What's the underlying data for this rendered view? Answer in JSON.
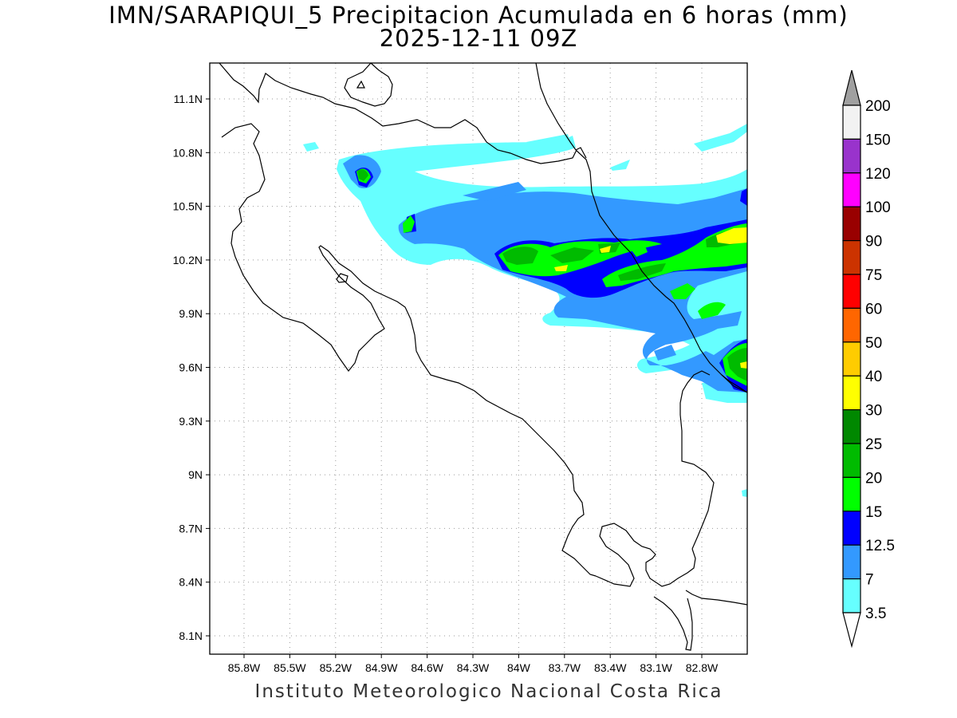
{
  "title": "IMN/SARAPIQUI_5 Precipitacion Acumulada en 6 horas (mm)",
  "subtitle": "2025-12-11 09Z",
  "footer": "Instituto Meteorologico Nacional Costa Rica",
  "map": {
    "lon_range": [
      -86.0,
      -82.5
    ],
    "lat_range": [
      8.0,
      11.3
    ],
    "lon_ticks": [
      "85.8W",
      "85.5W",
      "85.2W",
      "84.9W",
      "84.6W",
      "84.3W",
      "84W",
      "83.7W",
      "83.4W",
      "83.1W",
      "82.8W"
    ],
    "lat_ticks": [
      "11.1N",
      "10.8N",
      "10.5N",
      "10.2N",
      "9.9N",
      "9.6N",
      "9.3N",
      "9N",
      "8.7N",
      "8.4N",
      "8.1N"
    ],
    "grid": "dotted"
  },
  "colorbar": {
    "labels": [
      "200",
      "150",
      "120",
      "100",
      "90",
      "75",
      "60",
      "50",
      "40",
      "30",
      "25",
      "20",
      "15",
      "12.5",
      "7",
      "3.5"
    ],
    "colors": [
      "#f2f2f2",
      "#9933cc",
      "#ff00ff",
      "#990000",
      "#cc3300",
      "#ff0000",
      "#ff6600",
      "#ffcc00",
      "#ffff00",
      "#008800",
      "#00bb00",
      "#00ff00",
      "#0000ff",
      "#3399ff",
      "#66ffff"
    ],
    "above_arrow_color": "#a0a0a0",
    "below_arrow_color": "#ffffff"
  }
}
